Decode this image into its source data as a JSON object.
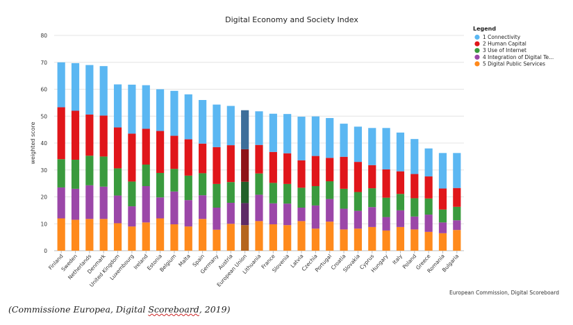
{
  "chart_data": {
    "type": "bar",
    "stacked": true,
    "title": "Digital Economy and Society Index",
    "ylabel": "weighted score",
    "xlabel": "",
    "ylim": [
      0,
      80
    ],
    "yticks": [
      0,
      10,
      20,
      30,
      40,
      50,
      60,
      70,
      80
    ],
    "grid": true,
    "legend": {
      "title": "Legend",
      "position": "top-right"
    },
    "categories": [
      "Finland",
      "Sweden",
      "Netherlands",
      "Denmark",
      "United Kingdom",
      "Luxembourg",
      "Ireland",
      "Estonia",
      "Belgium",
      "Malta",
      "Spain",
      "Germany",
      "Austria",
      "European Union",
      "Lithuania",
      "France",
      "Slovenia",
      "Latvia",
      "Czechia",
      "Portugal",
      "Croatia",
      "Slovakia",
      "Cyprus",
      "Hungary",
      "Italy",
      "Poland",
      "Greece",
      "Romania",
      "Bulgaria"
    ],
    "highlight_category": "European Union",
    "series": [
      {
        "name": "5 Digital Public Services",
        "color": "#ff8a1c",
        "highlight_color": "#b5651d",
        "values": [
          12,
          11.5,
          11.8,
          11.8,
          10.2,
          9,
          10.5,
          12,
          9.8,
          9,
          11.8,
          7.8,
          10,
          9.5,
          11,
          9.8,
          9.5,
          11,
          8.2,
          10.8,
          7.9,
          8.2,
          8.8,
          7.5,
          8.8,
          7.9,
          7,
          6.5,
          7.7
        ]
      },
      {
        "name": "4 Integration of Digital Te...",
        "color": "#9b47a8",
        "highlight_color": "#5e2b66",
        "values": [
          11.5,
          11.5,
          12.5,
          12,
          10.3,
          7.5,
          13.5,
          7.8,
          12.2,
          9.8,
          8.8,
          8.2,
          7.8,
          8.2,
          9.8,
          7.8,
          8,
          5,
          8.6,
          8.4,
          7.7,
          6.6,
          7.4,
          5,
          6.2,
          4.8,
          6.4,
          4,
          3.6
        ]
      },
      {
        "name": "3 Use of Internet",
        "color": "#3a9a3e",
        "highlight_color": "#22602a",
        "values": [
          10.5,
          10.8,
          11,
          11.2,
          10.1,
          9.2,
          8,
          9.1,
          8.4,
          9.1,
          8.2,
          8.8,
          7.7,
          7.9,
          7.9,
          7.6,
          7.3,
          7.4,
          7.2,
          6.6,
          7.4,
          7,
          7,
          7.2,
          6.1,
          6.8,
          6,
          4.8,
          5
        ]
      },
      {
        "name": "2 Human Capital",
        "color": "#e0161a",
        "highlight_color": "#8e1418",
        "values": [
          19.3,
          18.2,
          15.3,
          15.2,
          15.2,
          17.8,
          13.3,
          15.6,
          12.3,
          13.5,
          11,
          13.7,
          13.7,
          12.1,
          10.6,
          11.5,
          11.4,
          10.2,
          11.2,
          8.7,
          11.9,
          11.2,
          8.6,
          10.5,
          8.4,
          9,
          8.2,
          7.8,
          7
        ]
      },
      {
        "name": "1 Connectivity",
        "color": "#5bb7f2",
        "highlight_color": "#3d6e9a",
        "values": [
          16.7,
          17.7,
          18.4,
          18.4,
          16,
          18.2,
          16.2,
          15.5,
          16.7,
          16.7,
          16.2,
          15.8,
          14.6,
          14.5,
          12.5,
          14.2,
          14.6,
          16.2,
          14.7,
          14.8,
          12.3,
          13.1,
          13.8,
          15.4,
          14.4,
          13,
          10.4,
          13.2,
          13
        ]
      }
    ]
  },
  "credit": "European Commission, Digital Scoreboard",
  "caption": {
    "prefix": "(Commissione Europea, Digital ",
    "underlined": "Scoreboard",
    "suffix": ", 2019)"
  }
}
